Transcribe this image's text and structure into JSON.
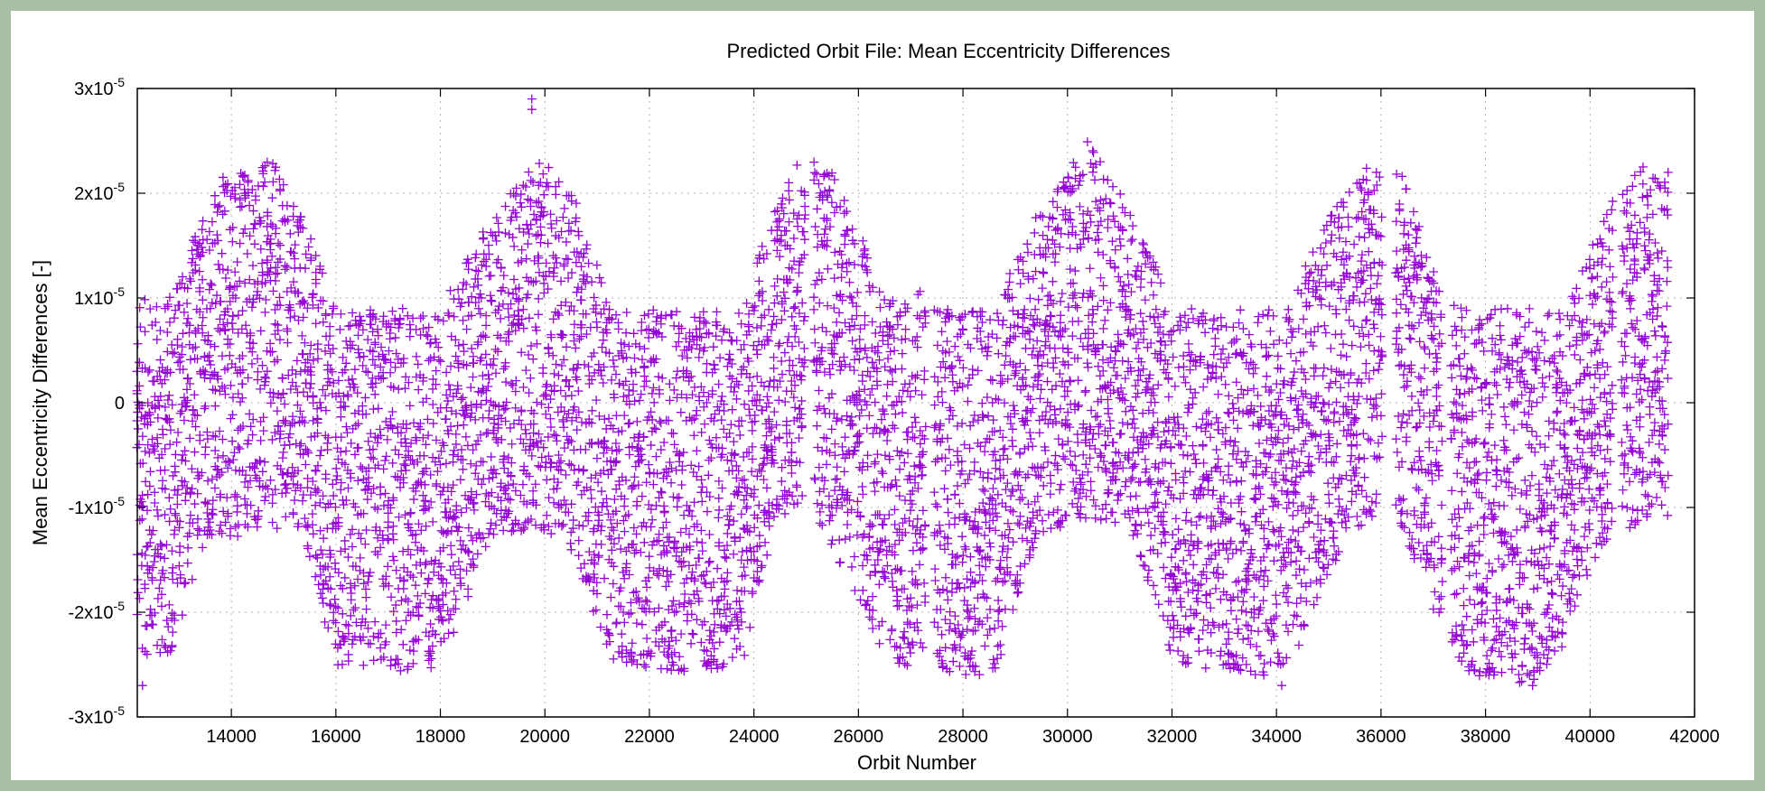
{
  "colors": {
    "background_border": "#a9bfa3",
    "plot_background": "#ffffff",
    "series": "#9400d3",
    "grid": "#b3b3b3",
    "axis": "#000000"
  },
  "chart_data": {
    "type": "scatter",
    "title": "Predicted Orbit File: Mean Eccentricity Differences",
    "xlabel": "Orbit Number",
    "ylabel": "Mean Eccentricity Differences [-]",
    "xlim": [
      12200,
      42000
    ],
    "ylim": [
      -3e-05,
      3e-05
    ],
    "grid": true,
    "legend": "none",
    "marker": "plus",
    "x_ticks": [
      {
        "value": 14000,
        "label": "14000"
      },
      {
        "value": 16000,
        "label": "16000"
      },
      {
        "value": 18000,
        "label": "18000"
      },
      {
        "value": 20000,
        "label": "20000"
      },
      {
        "value": 22000,
        "label": "22000"
      },
      {
        "value": 24000,
        "label": "24000"
      },
      {
        "value": 26000,
        "label": "26000"
      },
      {
        "value": 28000,
        "label": "28000"
      },
      {
        "value": 30000,
        "label": "30000"
      },
      {
        "value": 32000,
        "label": "32000"
      },
      {
        "value": 34000,
        "label": "34000"
      },
      {
        "value": 36000,
        "label": "36000"
      },
      {
        "value": 38000,
        "label": "38000"
      },
      {
        "value": 40000,
        "label": "40000"
      },
      {
        "value": 42000,
        "label": "42000"
      }
    ],
    "y_ticks": [
      {
        "value": 3e-05,
        "mant": "3x10",
        "exp": "-5"
      },
      {
        "value": 2e-05,
        "mant": "2x10",
        "exp": "-5"
      },
      {
        "value": 1e-05,
        "mant": "1x10",
        "exp": "-5"
      },
      {
        "value": 0,
        "mant": "0",
        "exp": ""
      },
      {
        "value": -1e-05,
        "mant": "-1x10",
        "exp": "-5"
      },
      {
        "value": -2e-05,
        "mant": "-2x10",
        "exp": "-5"
      },
      {
        "value": -3e-05,
        "mant": "-3x10",
        "exp": "-5"
      }
    ],
    "series": [
      {
        "envelope": [
          {
            "x": 12200,
            "min": -2.4e-05,
            "max": 1e-05
          },
          {
            "x": 12800,
            "min": -2.5e-05,
            "max": 1e-05
          },
          {
            "x": 13500,
            "min": -1.3e-05,
            "max": 1.9e-05
          },
          {
            "x": 14000,
            "min": -1.3e-05,
            "max": 2.3e-05
          },
          {
            "x": 14800,
            "min": -1.2e-05,
            "max": 2.3e-05
          },
          {
            "x": 15400,
            "min": -1.3e-05,
            "max": 1.8e-05
          },
          {
            "x": 16000,
            "min": -2.5e-05,
            "max": 9e-06
          },
          {
            "x": 17500,
            "min": -2.6e-05,
            "max": 9e-06
          },
          {
            "x": 18000,
            "min": -2.5e-05,
            "max": 9e-06
          },
          {
            "x": 19000,
            "min": -1.3e-05,
            "max": 1.8e-05
          },
          {
            "x": 19800,
            "min": -1.2e-05,
            "max": 2.3e-05
          },
          {
            "x": 20400,
            "min": -1.3e-05,
            "max": 2.2e-05
          },
          {
            "x": 21300,
            "min": -2.5e-05,
            "max": 9e-06
          },
          {
            "x": 23000,
            "min": -2.6e-05,
            "max": 9e-06
          },
          {
            "x": 23800,
            "min": -2.5e-05,
            "max": 9e-06
          },
          {
            "x": 24400,
            "min": -1.1e-05,
            "max": 2e-05
          },
          {
            "x": 25000,
            "min": -1e-05,
            "max": 2.4e-05
          },
          {
            "x": 25600,
            "min": -1.5e-05,
            "max": 2.2e-05
          },
          {
            "x": 26400,
            "min": -2.3e-05,
            "max": 1.1e-05
          },
          {
            "x": 26800,
            "min": -2.6e-05,
            "max": 9e-06
          },
          {
            "x": 27300,
            "min": -2.3e-05,
            "max": 1.2e-05
          },
          {
            "x": 27500,
            "min": -2.6e-05,
            "max": 9e-06
          },
          {
            "x": 28600,
            "min": -2.6e-05,
            "max": 9e-06
          },
          {
            "x": 29400,
            "min": -1.3e-05,
            "max": 1.8e-05
          },
          {
            "x": 30400,
            "min": -1.1e-05,
            "max": 2.5e-05
          },
          {
            "x": 31300,
            "min": -1.3e-05,
            "max": 1.8e-05
          },
          {
            "x": 32000,
            "min": -2.5e-05,
            "max": 9e-06
          },
          {
            "x": 33500,
            "min": -2.6e-05,
            "max": 9e-06
          },
          {
            "x": 34200,
            "min": -2.6e-05,
            "max": 9e-06
          },
          {
            "x": 35000,
            "min": -1.6e-05,
            "max": 1.8e-05
          },
          {
            "x": 35800,
            "min": -1.1e-05,
            "max": 2.3e-05
          },
          {
            "x": 36000,
            "min": -1e-05,
            "max": 2.3e-05
          },
          {
            "x": 36400,
            "min": -1.2e-05,
            "max": 2.2e-05
          },
          {
            "x": 37200,
            "min": -2.2e-05,
            "max": 1e-05
          },
          {
            "x": 37600,
            "min": -2.6e-05,
            "max": 9e-06
          },
          {
            "x": 38900,
            "min": -2.7e-05,
            "max": 9e-06
          },
          {
            "x": 39500,
            "min": -2.4e-05,
            "max": 9e-06
          },
          {
            "x": 40200,
            "min": -1.4e-05,
            "max": 1.7e-05
          },
          {
            "x": 40800,
            "min": -1.2e-05,
            "max": 2.3e-05
          },
          {
            "x": 41500,
            "min": -1.1e-05,
            "max": 2.2e-05
          }
        ],
        "gaps": [
          {
            "from": 25000,
            "to": 25150
          },
          {
            "from": 27300,
            "to": 27450
          },
          {
            "from": 36050,
            "to": 36250
          },
          {
            "from": 37200,
            "to": 37350
          },
          {
            "from": 40450,
            "to": 40600
          }
        ],
        "outliers": [
          {
            "x": 12300,
            "y": -2.7e-05
          },
          {
            "x": 19750,
            "y": 2.9e-05
          },
          {
            "x": 19750,
            "y": 2.8e-05
          },
          {
            "x": 34100,
            "y": -2.7e-05
          },
          {
            "x": 38900,
            "y": -2.7e-05
          }
        ]
      }
    ]
  }
}
